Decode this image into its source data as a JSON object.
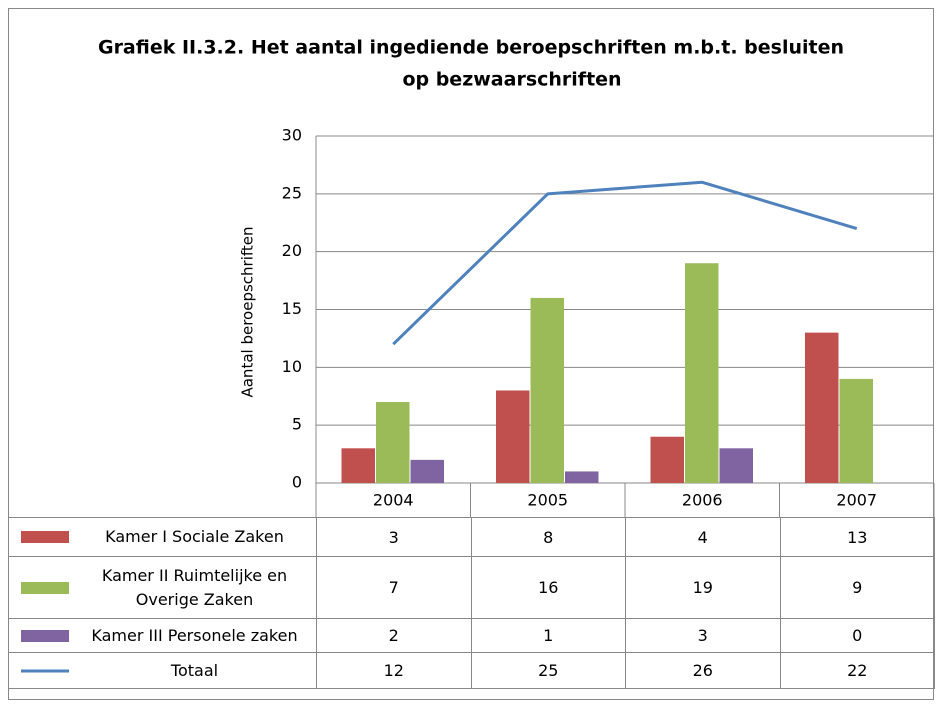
{
  "chart_data": {
    "type": "bar",
    "title": [
      "Grafiek II.3.2. Het aantal ingediende beroepschriften m.b.t. besluiten",
      "op bezwaarschriften"
    ],
    "y_label": "Aantal beroepschriften",
    "categories": [
      "2004",
      "2005",
      "2006",
      "2007"
    ],
    "series": [
      {
        "name": "Kamer I Sociale Zaken",
        "color": "#c0504d",
        "type": "bar",
        "values": [
          3,
          8,
          4,
          13
        ]
      },
      {
        "name": "Kamer II Ruimtelijke en Overige Zaken",
        "color": "#9bbb59",
        "type": "bar",
        "values": [
          7,
          16,
          19,
          9
        ]
      },
      {
        "name": "Kamer III Personele zaken",
        "color": "#8064a2",
        "type": "bar",
        "values": [
          2,
          1,
          3,
          0
        ]
      },
      {
        "name": "Totaal",
        "color": "#4f81bd",
        "type": "line",
        "values": [
          12,
          25,
          26,
          22
        ]
      }
    ],
    "ylim": [
      0,
      30
    ],
    "yticks": [
      0,
      5,
      10,
      15,
      20,
      25,
      30
    ],
    "grid": true,
    "data_table": true
  }
}
